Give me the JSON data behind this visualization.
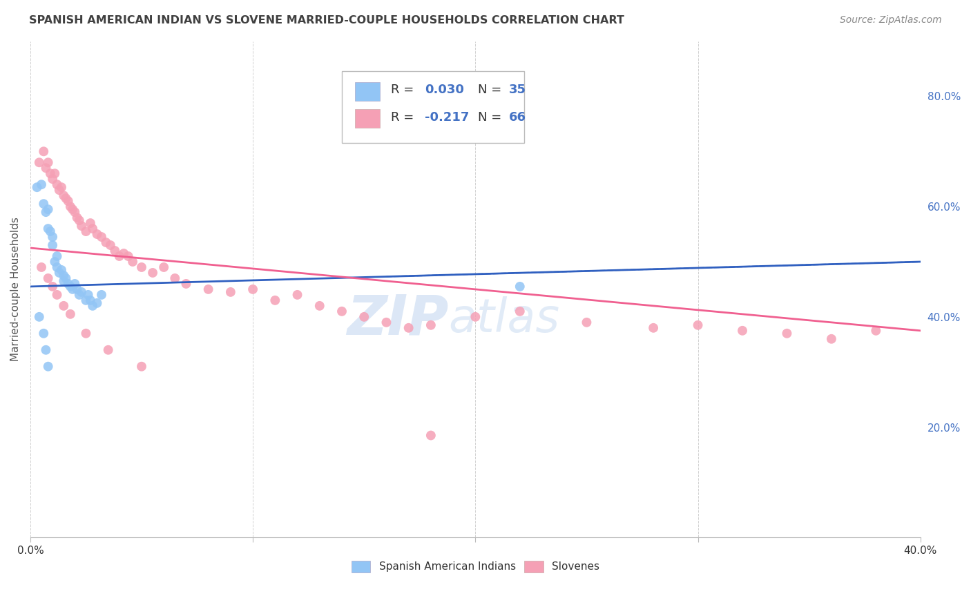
{
  "title": "SPANISH AMERICAN INDIAN VS SLOVENE MARRIED-COUPLE HOUSEHOLDS CORRELATION CHART",
  "source": "Source: ZipAtlas.com",
  "ylabel": "Married-couple Households",
  "xlim": [
    0.0,
    0.4
  ],
  "ylim": [
    0.0,
    0.9
  ],
  "y_ticks_right": [
    0.2,
    0.4,
    0.6,
    0.8
  ],
  "y_ticklabels_right": [
    "20.0%",
    "40.0%",
    "60.0%",
    "80.0%"
  ],
  "blue_color": "#92C5F5",
  "pink_color": "#F5A0B5",
  "blue_line_color": "#3060C0",
  "pink_line_color": "#F06090",
  "label_color": "#4472C4",
  "title_color": "#404040",
  "watermark_color": "#C5D8F0",
  "background_color": "#FFFFFF",
  "grid_color": "#CCCCCC",
  "blue_trend": [
    0.0,
    0.4,
    0.455,
    0.5
  ],
  "pink_trend": [
    0.0,
    0.4,
    0.525,
    0.375
  ],
  "blue_scatter_x": [
    0.003,
    0.005,
    0.006,
    0.007,
    0.008,
    0.008,
    0.009,
    0.01,
    0.01,
    0.011,
    0.012,
    0.012,
    0.013,
    0.014,
    0.015,
    0.015,
    0.016,
    0.017,
    0.018,
    0.019,
    0.02,
    0.021,
    0.022,
    0.023,
    0.025,
    0.026,
    0.027,
    0.028,
    0.03,
    0.032,
    0.004,
    0.006,
    0.007,
    0.008,
    0.22
  ],
  "blue_scatter_y": [
    0.635,
    0.64,
    0.605,
    0.59,
    0.595,
    0.56,
    0.555,
    0.545,
    0.53,
    0.5,
    0.51,
    0.49,
    0.48,
    0.485,
    0.475,
    0.465,
    0.47,
    0.46,
    0.455,
    0.45,
    0.46,
    0.45,
    0.44,
    0.445,
    0.43,
    0.44,
    0.43,
    0.42,
    0.425,
    0.44,
    0.4,
    0.37,
    0.34,
    0.31,
    0.455
  ],
  "pink_scatter_x": [
    0.004,
    0.006,
    0.007,
    0.008,
    0.009,
    0.01,
    0.011,
    0.012,
    0.013,
    0.014,
    0.015,
    0.016,
    0.017,
    0.018,
    0.019,
    0.02,
    0.021,
    0.022,
    0.023,
    0.025,
    0.027,
    0.028,
    0.03,
    0.032,
    0.034,
    0.036,
    0.038,
    0.04,
    0.042,
    0.044,
    0.046,
    0.05,
    0.055,
    0.06,
    0.065,
    0.07,
    0.08,
    0.09,
    0.1,
    0.11,
    0.12,
    0.13,
    0.14,
    0.15,
    0.16,
    0.17,
    0.18,
    0.2,
    0.22,
    0.25,
    0.28,
    0.3,
    0.32,
    0.34,
    0.36,
    0.38,
    0.005,
    0.008,
    0.01,
    0.012,
    0.015,
    0.018,
    0.025,
    0.035,
    0.05,
    0.18
  ],
  "pink_scatter_y": [
    0.68,
    0.7,
    0.67,
    0.68,
    0.66,
    0.65,
    0.66,
    0.64,
    0.63,
    0.635,
    0.62,
    0.615,
    0.61,
    0.6,
    0.595,
    0.59,
    0.58,
    0.575,
    0.565,
    0.555,
    0.57,
    0.56,
    0.55,
    0.545,
    0.535,
    0.53,
    0.52,
    0.51,
    0.515,
    0.51,
    0.5,
    0.49,
    0.48,
    0.49,
    0.47,
    0.46,
    0.45,
    0.445,
    0.45,
    0.43,
    0.44,
    0.42,
    0.41,
    0.4,
    0.39,
    0.38,
    0.385,
    0.4,
    0.41,
    0.39,
    0.38,
    0.385,
    0.375,
    0.37,
    0.36,
    0.375,
    0.49,
    0.47,
    0.455,
    0.44,
    0.42,
    0.405,
    0.37,
    0.34,
    0.31,
    0.185
  ]
}
